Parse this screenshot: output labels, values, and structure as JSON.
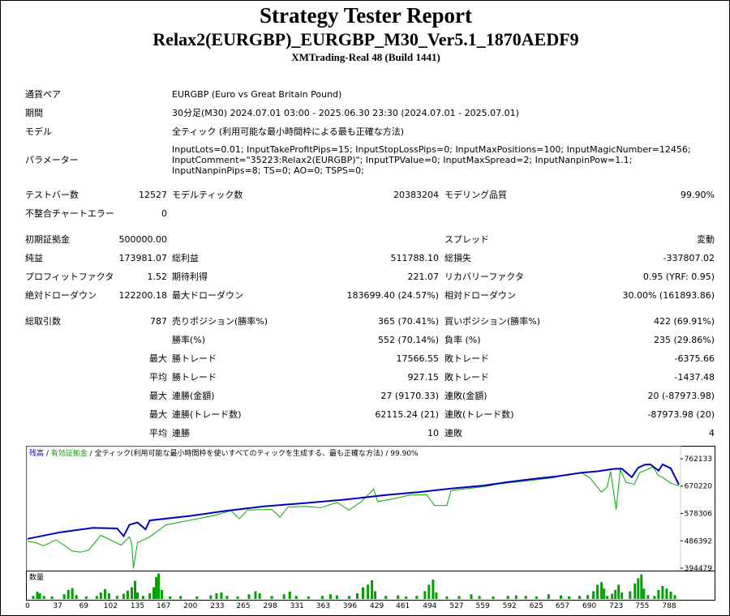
{
  "header": {
    "title": "Strategy Tester Report",
    "subtitle": "Relax2(EURGBP)_EURGBP_M30_Ver5.1_1870AEDF9",
    "server": "XMTrading-Real 48 (Build 1441)"
  },
  "settings": {
    "symbol_label": "通貨ペア",
    "symbol_value": "EURGBP (Euro vs Great Britain Pound)",
    "period_label": "期間",
    "period_value": "30分足(M30) 2024.07.01 03:00 - 2025.06.30 23:30 (2024.07.01 - 2025.07.01)",
    "model_label": "モデル",
    "model_value": "全ティック (利用可能な最小時間枠による最も正確な方法)",
    "params_label": "パラメーター",
    "params_value": "InputLots=0.01; InputTakeProfitPips=15; InputStopLossPips=0; InputMaxPositions=100; InputMagicNumber=12456; InputComment=\"35223:Relax2(EURGBP)\"; InputTPValue=0; InputMaxSpread=2; InputNanpinPow=1.1; InputNanpinPips=8; TS=0; AO=0; TSPS=0;"
  },
  "quality": {
    "bars_label": "テストバー数",
    "bars_value": "12527",
    "ticks_label": "モデルティック数",
    "ticks_value": "20383204",
    "quality_label": "モデリング品質",
    "quality_value": "99.90%",
    "errors_label": "不整合チャートエラー",
    "errors_value": "0"
  },
  "results": {
    "deposit_label": "初期証拠金",
    "deposit_value": "500000.00",
    "spread_label": "スプレッド",
    "spread_value": "変動",
    "net_label": "純益",
    "net_value": "173981.07",
    "gross_profit_label": "総利益",
    "gross_profit_value": "511788.10",
    "gross_loss_label": "総損失",
    "gross_loss_value": "-337807.02",
    "pf_label": "プロフィットファクタ",
    "pf_value": "1.52",
    "expected_label": "期待利得",
    "expected_value": "221.07",
    "recovery_label": "リカバリーファクタ",
    "recovery_value": "0.95 (YRF: 0.95)",
    "abs_dd_label": "絶対ドローダウン",
    "abs_dd_value": "122200.18",
    "max_dd_label": "最大ドローダウン",
    "max_dd_value": "183699.40 (24.57%)",
    "rel_dd_label": "相対ドローダウン",
    "rel_dd_value": "30.00% (161893.86)"
  },
  "trades": {
    "total_label": "総取引数",
    "total_value": "787",
    "short_label": "売りポジション(勝率%)",
    "short_value": "365 (70.41%)",
    "long_label": "買いポジション(勝率%)",
    "long_value": "422 (69.91%)",
    "win_label": "勝率(%)",
    "win_value": "552 (70.14%)",
    "loss_label": "負率 (%)",
    "loss_value": "235 (29.86%)",
    "max_label": "最大",
    "avg_label": "平均",
    "max_win_label": "勝トレード",
    "max_win_value": "17566.55",
    "max_loss_label": "敗トレード",
    "max_loss_value": "-6375.66",
    "avg_win_label": "勝トレード",
    "avg_win_value": "927.15",
    "avg_loss_label": "敗トレード",
    "avg_loss_value": "-1437.48",
    "max_cons_win_amt_label": "連勝(金額)",
    "max_cons_win_amt_value": "27 (9170.33)",
    "max_cons_loss_amt_label": "連敗(金額)",
    "max_cons_loss_amt_value": "20 (-87973.98)",
    "max_cons_win_cnt_label": "連勝(トレード数)",
    "max_cons_win_cnt_value": "62115.24 (21)",
    "max_cons_loss_cnt_label": "連敗(トレード数)",
    "max_cons_loss_cnt_value": "-87973.98 (20)",
    "avg_cons_win_label": "連勝",
    "avg_cons_win_value": "10",
    "avg_cons_loss_label": "連敗",
    "avg_cons_loss_value": "4"
  },
  "chart_data": {
    "type": "line",
    "legend": {
      "balance": "残高",
      "sep1": " / ",
      "equity": "有効証拠金",
      "sep2": " / ",
      "model": "全ティック(利用可能な最小時間枠を使いすべてのティックを生成する、最も正確な方法)",
      "sep3": " / ",
      "quality": "99.90%"
    },
    "y_ticks": [
      "762133",
      "670220",
      "578306",
      "486392",
      "394479"
    ],
    "ylim": [
      394479,
      762133
    ],
    "x_ticks": [
      "0",
      "37",
      "69",
      "102",
      "135",
      "167",
      "200",
      "233",
      "265",
      "298",
      "331",
      "363",
      "396",
      "429",
      "461",
      "494",
      "527",
      "559",
      "592",
      "625",
      "657",
      "690",
      "723",
      "755",
      "788"
    ],
    "xlim": [
      0,
      800
    ],
    "colors": {
      "balance": "#0000bb",
      "equity": "#00aa00",
      "volume": "#00a000"
    },
    "volume_label": "数量",
    "balance": [
      [
        0,
        493000
      ],
      [
        40,
        515000
      ],
      [
        80,
        530000
      ],
      [
        110,
        528000
      ],
      [
        118,
        502000
      ],
      [
        125,
        540000
      ],
      [
        135,
        548000
      ],
      [
        145,
        525000
      ],
      [
        150,
        555000
      ],
      [
        200,
        570000
      ],
      [
        240,
        586000
      ],
      [
        290,
        602000
      ],
      [
        340,
        613000
      ],
      [
        390,
        625000
      ],
      [
        440,
        640000
      ],
      [
        480,
        650000
      ],
      [
        520,
        662000
      ],
      [
        560,
        672000
      ],
      [
        590,
        684000
      ],
      [
        620,
        694000
      ],
      [
        650,
        703000
      ],
      [
        680,
        715000
      ],
      [
        700,
        720000
      ],
      [
        720,
        728000
      ],
      [
        730,
        729000
      ],
      [
        742,
        700000
      ],
      [
        750,
        732000
      ],
      [
        758,
        742000
      ],
      [
        765,
        743000
      ],
      [
        775,
        722000
      ],
      [
        780,
        743000
      ],
      [
        790,
        730000
      ],
      [
        800,
        675000
      ]
    ],
    "equity": [
      [
        0,
        485000
      ],
      [
        10,
        480000
      ],
      [
        20,
        470000
      ],
      [
        35,
        490000
      ],
      [
        55,
        452000
      ],
      [
        65,
        448000
      ],
      [
        75,
        455000
      ],
      [
        90,
        505000
      ],
      [
        115,
        472000
      ],
      [
        125,
        500000
      ],
      [
        128,
        475000
      ],
      [
        130,
        395000
      ],
      [
        135,
        480000
      ],
      [
        150,
        500000
      ],
      [
        170,
        540000
      ],
      [
        200,
        556000
      ],
      [
        230,
        572000
      ],
      [
        250,
        588000
      ],
      [
        260,
        560000
      ],
      [
        270,
        590000
      ],
      [
        300,
        592000
      ],
      [
        310,
        566000
      ],
      [
        320,
        600000
      ],
      [
        340,
        602000
      ],
      [
        360,
        598000
      ],
      [
        380,
        615000
      ],
      [
        395,
        590000
      ],
      [
        410,
        618000
      ],
      [
        425,
        660000
      ],
      [
        430,
        618000
      ],
      [
        450,
        628000
      ],
      [
        470,
        640000
      ],
      [
        490,
        642000
      ],
      [
        500,
        605000
      ],
      [
        515,
        605000
      ],
      [
        520,
        655000
      ],
      [
        540,
        662000
      ],
      [
        560,
        668000
      ],
      [
        580,
        678000
      ],
      [
        600,
        684000
      ],
      [
        620,
        690000
      ],
      [
        645,
        698000
      ],
      [
        665,
        710000
      ],
      [
        680,
        715000
      ],
      [
        690,
        700000
      ],
      [
        705,
        650000
      ],
      [
        712,
        668000
      ],
      [
        716,
        720000
      ],
      [
        723,
        592000
      ],
      [
        728,
        725000
      ],
      [
        735,
        683000
      ],
      [
        745,
        676000
      ],
      [
        752,
        716000
      ],
      [
        760,
        724000
      ],
      [
        768,
        735000
      ],
      [
        775,
        705000
      ],
      [
        780,
        700000
      ],
      [
        790,
        680000
      ],
      [
        800,
        671000
      ]
    ],
    "volume": [
      [
        7,
        0.12
      ],
      [
        12,
        0.28
      ],
      [
        15,
        0.22
      ],
      [
        20,
        0.12
      ],
      [
        30,
        0.1
      ],
      [
        45,
        0.18
      ],
      [
        50,
        0.35
      ],
      [
        55,
        0.42
      ],
      [
        60,
        0.15
      ],
      [
        72,
        0.1
      ],
      [
        85,
        0.12
      ],
      [
        90,
        0.25
      ],
      [
        95,
        0.38
      ],
      [
        100,
        0.22
      ],
      [
        110,
        0.12
      ],
      [
        118,
        0.2
      ],
      [
        123,
        0.32
      ],
      [
        128,
        0.45
      ],
      [
        132,
        0.7
      ],
      [
        135,
        0.25
      ],
      [
        142,
        0.12
      ],
      [
        150,
        0.22
      ],
      [
        155,
        0.45
      ],
      [
        158,
        0.85
      ],
      [
        161,
        0.98
      ],
      [
        165,
        0.35
      ],
      [
        175,
        0.1
      ],
      [
        188,
        0.12
      ],
      [
        208,
        0.1
      ],
      [
        225,
        0.14
      ],
      [
        232,
        0.22
      ],
      [
        238,
        0.25
      ],
      [
        245,
        0.12
      ],
      [
        258,
        0.1
      ],
      [
        272,
        0.18
      ],
      [
        280,
        0.3
      ],
      [
        285,
        0.22
      ],
      [
        300,
        0.12
      ],
      [
        315,
        0.18
      ],
      [
        322,
        0.28
      ],
      [
        330,
        0.12
      ],
      [
        345,
        0.1
      ],
      [
        362,
        0.12
      ],
      [
        372,
        0.18
      ],
      [
        380,
        0.14
      ],
      [
        395,
        0.12
      ],
      [
        405,
        0.22
      ],
      [
        412,
        0.45
      ],
      [
        418,
        0.55
      ],
      [
        423,
        0.72
      ],
      [
        427,
        0.3
      ],
      [
        440,
        0.12
      ],
      [
        455,
        0.14
      ],
      [
        465,
        0.1
      ],
      [
        478,
        0.12
      ],
      [
        488,
        0.3
      ],
      [
        493,
        0.55
      ],
      [
        498,
        0.75
      ],
      [
        502,
        0.25
      ],
      [
        515,
        0.1
      ],
      [
        530,
        0.12
      ],
      [
        545,
        0.18
      ],
      [
        555,
        0.12
      ],
      [
        572,
        0.1
      ],
      [
        590,
        0.12
      ],
      [
        600,
        0.14
      ],
      [
        612,
        0.12
      ],
      [
        625,
        0.1
      ],
      [
        640,
        0.18
      ],
      [
        655,
        0.14
      ],
      [
        665,
        0.1
      ],
      [
        678,
        0.12
      ],
      [
        688,
        0.15
      ],
      [
        695,
        0.3
      ],
      [
        700,
        0.55
      ],
      [
        705,
        0.65
      ],
      [
        708,
        0.4
      ],
      [
        712,
        0.12
      ],
      [
        718,
        0.2
      ],
      [
        722,
        0.35
      ],
      [
        726,
        0.55
      ],
      [
        730,
        0.25
      ],
      [
        740,
        0.3
      ],
      [
        746,
        0.6
      ],
      [
        750,
        0.8
      ],
      [
        754,
        0.95
      ],
      [
        757,
        0.4
      ],
      [
        762,
        0.15
      ],
      [
        770,
        0.12
      ],
      [
        775,
        0.35
      ],
      [
        780,
        0.5
      ],
      [
        785,
        0.4
      ],
      [
        790,
        0.28
      ],
      [
        795,
        0.15
      ]
    ]
  }
}
